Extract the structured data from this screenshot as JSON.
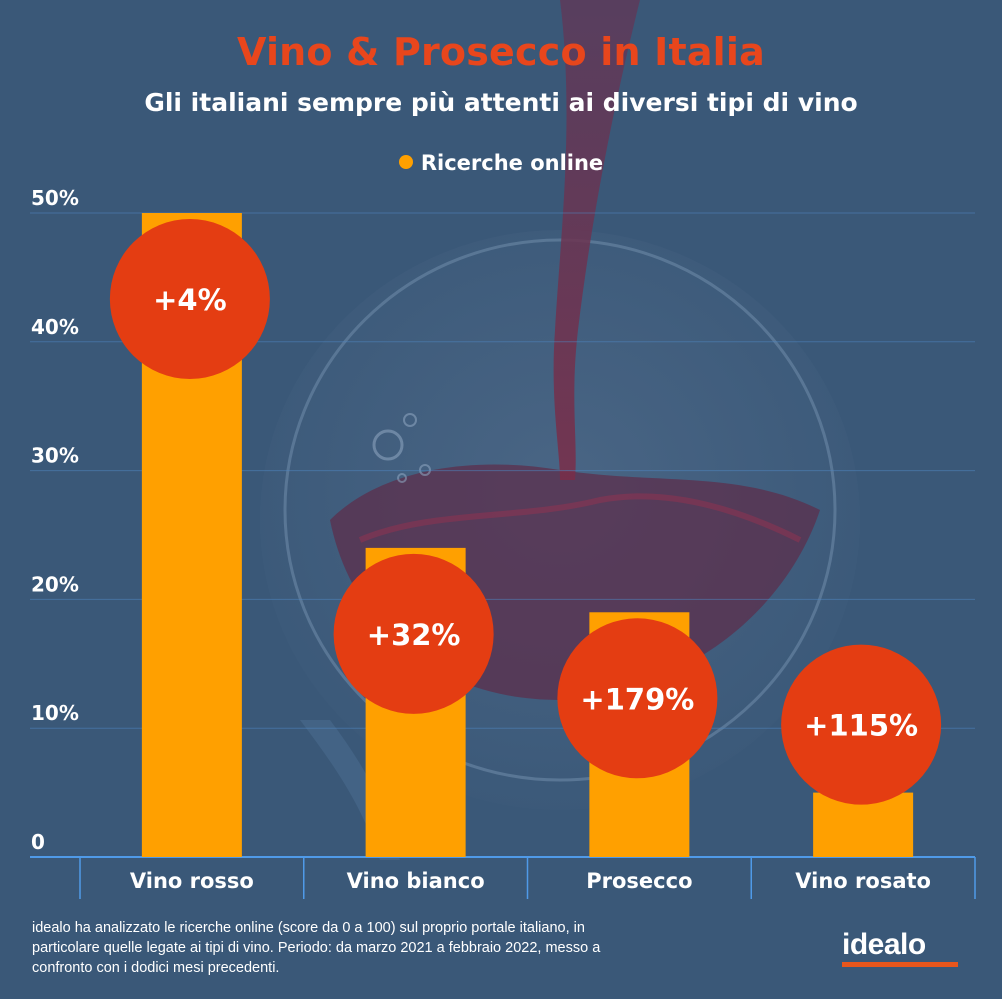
{
  "header": {
    "title": "Vino & Prosecco in Italia",
    "subtitle": "Gli italiani sempre più attenti ai diversi tipi di vino"
  },
  "chart_data": {
    "type": "bar",
    "title": "Vino & Prosecco in Italia",
    "subtitle": "Gli italiani sempre più attenti ai diversi tipi di vino",
    "categories": [
      "Vino rosso",
      "Vino bianco",
      "Prosecco",
      "Vino rosato"
    ],
    "series": [
      {
        "name": "Ricerche online",
        "values": [
          50,
          24,
          19,
          5
        ],
        "color": "#ffa000"
      }
    ],
    "annotations": [
      "+4%",
      "+32%",
      "+179%",
      "+115%"
    ],
    "annotation_color": "#e43d12",
    "y_ticks": [
      "0",
      "10%",
      "20%",
      "30%",
      "40%",
      "50%"
    ],
    "ylim": [
      0,
      50
    ],
    "xlabel": "",
    "ylabel": "",
    "grid": true,
    "legend": "top-center"
  },
  "footer": {
    "note": "idealo ha analizzato le ricerche online (score da 0 a 100) sul proprio portale italiano, in particolare quelle legate ai tipi di vino. Periodo: da marzo 2021 a febbraio 2022, messo a confronto con i dodici mesi precedenti.",
    "logo": "idealo"
  }
}
